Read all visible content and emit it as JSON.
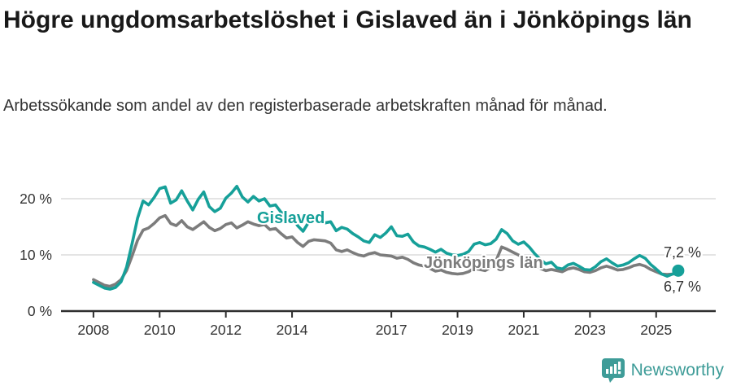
{
  "title": "Högre ungdomsarbetslöshet i Gislaved än i Jönköpings län",
  "subtitle": "Arbetssökande som andel av den registerbaserade arbetskraften månad för månad.",
  "footer": {
    "brand": "Newsworthy",
    "logo_icon": "newsworthy-pin-barchart-icon",
    "brand_color": "#3e9c98"
  },
  "colors": {
    "gislaved_teal": "#16a099",
    "jonkoping_gray": "#7c7c7c",
    "gridline": "#dbdbdb",
    "axis": "#2e2e2e",
    "text": "#333333"
  },
  "chart_data": {
    "type": "line",
    "unit": "%",
    "grid": "horizontal",
    "x_start": 2008.0,
    "x_step_years": 0.166667,
    "x_tick_years": [
      2008,
      2010,
      2012,
      2014,
      2017,
      2019,
      2021,
      2023,
      2025
    ],
    "x_tick_labels": [
      "2008",
      "2010",
      "2012",
      "2014",
      "2017",
      "2019",
      "2021",
      "2023",
      "2025"
    ],
    "y_ticks": [
      {
        "value": 0,
        "label": "0 %"
      },
      {
        "value": 10,
        "label": "10 %"
      },
      {
        "value": 20,
        "label": "20 %"
      }
    ],
    "ylim": [
      0,
      24
    ],
    "series": [
      {
        "name": "Gislaved",
        "color": "#16a099",
        "end_label": "7,2 %",
        "end_value": 7.2,
        "end_dot": true,
        "values": [
          5.1,
          4.6,
          4.1,
          3.9,
          4.2,
          5.2,
          7.8,
          12.0,
          16.5,
          19.6,
          18.9,
          20.2,
          21.8,
          22.1,
          19.2,
          19.8,
          21.4,
          19.6,
          18.0,
          19.9,
          21.2,
          18.6,
          17.7,
          18.3,
          20.1,
          21.0,
          22.2,
          20.3,
          19.4,
          20.4,
          19.6,
          20.0,
          18.7,
          18.9,
          17.6,
          17.0,
          16.8,
          15.2,
          14.2,
          15.8,
          16.1,
          15.9,
          15.7,
          15.9,
          14.3,
          14.9,
          14.6,
          13.8,
          13.2,
          12.5,
          12.2,
          13.6,
          13.1,
          13.9,
          15.0,
          13.4,
          13.3,
          13.7,
          12.3,
          11.6,
          11.4,
          11.0,
          10.5,
          11.0,
          10.3,
          10.0,
          9.9,
          10.1,
          10.6,
          11.9,
          12.2,
          11.8,
          12.0,
          12.8,
          14.5,
          13.8,
          12.5,
          11.9,
          12.3,
          11.4,
          10.2,
          9.2,
          8.4,
          8.7,
          7.7,
          7.5,
          8.2,
          8.5,
          8.0,
          7.4,
          7.3,
          7.9,
          8.8,
          9.3,
          8.6,
          8.0,
          8.2,
          8.6,
          9.3,
          9.9,
          9.4,
          8.3,
          7.5,
          6.6,
          6.2,
          6.6,
          7.2
        ]
      },
      {
        "name": "Jönköpings län",
        "color": "#7c7c7c",
        "end_label": "6,7 %",
        "end_value": 6.7,
        "end_dot": false,
        "values": [
          5.6,
          5.1,
          4.6,
          4.4,
          4.8,
          5.6,
          7.2,
          9.8,
          12.6,
          14.4,
          14.8,
          15.6,
          16.6,
          17.0,
          15.6,
          15.2,
          16.1,
          15.0,
          14.5,
          15.2,
          15.9,
          14.9,
          14.3,
          14.7,
          15.4,
          15.7,
          14.8,
          15.3,
          15.9,
          15.5,
          15.2,
          15.4,
          14.5,
          14.7,
          13.8,
          13.0,
          13.2,
          12.2,
          11.5,
          12.4,
          12.7,
          12.6,
          12.5,
          12.1,
          10.9,
          10.6,
          10.9,
          10.4,
          10.0,
          9.8,
          10.2,
          10.4,
          10.0,
          9.9,
          9.8,
          9.4,
          9.6,
          9.2,
          8.6,
          8.2,
          8.0,
          7.6,
          7.1,
          7.3,
          6.9,
          6.7,
          6.6,
          6.7,
          7.0,
          7.6,
          7.4,
          7.2,
          7.8,
          9.0,
          11.4,
          11.0,
          10.5,
          10.0,
          9.6,
          8.9,
          8.2,
          7.6,
          7.2,
          7.4,
          7.2,
          7.0,
          7.5,
          7.7,
          7.4,
          7.0,
          6.9,
          7.2,
          7.7,
          8.0,
          7.7,
          7.3,
          7.4,
          7.7,
          8.1,
          8.3,
          8.0,
          7.4,
          7.0,
          6.6,
          6.5,
          6.6,
          6.7
        ]
      }
    ]
  }
}
